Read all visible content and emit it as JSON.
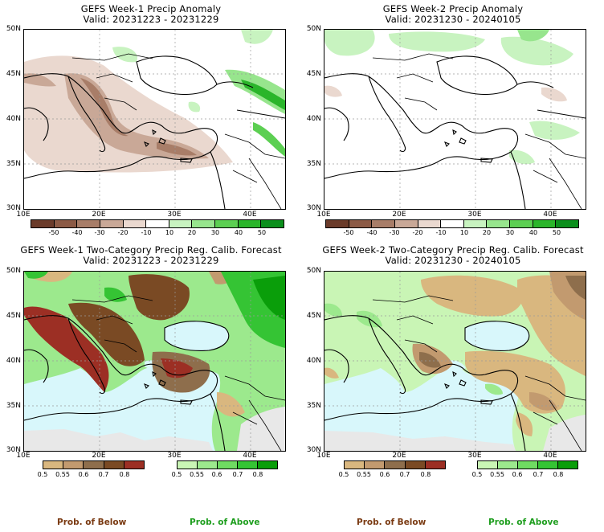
{
  "panels": [
    {
      "title": "GEFS Week-1 Precip Anomaly",
      "valid": "Valid: 20231223 - 20231229"
    },
    {
      "title": "GEFS Week-2 Precip Anomaly",
      "valid": "Valid: 20231230 - 20240105"
    },
    {
      "title": "GEFS Week-1 Two-Category Precip Reg. Calib. Forecast",
      "valid": "Valid: 20231223 - 20231229"
    },
    {
      "title": "GEFS Week-2 Two-Category Precip Reg. Calib. Forecast",
      "valid": "Valid: 20231230 - 20240105"
    }
  ],
  "lat_labels": [
    "50N",
    "45N",
    "40N",
    "35N",
    "30N"
  ],
  "lon_labels": [
    "10E",
    "20E",
    "30E",
    "40E"
  ],
  "anomaly_scale": [
    "-50",
    "-40",
    "-30",
    "-20",
    "-10",
    "10",
    "20",
    "30",
    "40",
    "50"
  ],
  "anomaly_colors": [
    "#6b3b2a",
    "#8c5a45",
    "#a87d68",
    "#c9a897",
    "#ead8cf",
    "#ffffff",
    "#c8f3c0",
    "#97e58d",
    "#5ccf52",
    "#2ab52a",
    "#0b8f1c"
  ],
  "prob_scale": [
    "0.5",
    "0.55",
    "0.6",
    "0.7",
    "0.8"
  ],
  "below_colors": [
    "#d9b77f",
    "#c29a6f",
    "#8e6e4c",
    "#7a4a24",
    "#9c2f24"
  ],
  "above_colors": [
    "#c9f5b5",
    "#9ce98d",
    "#6fdb62",
    "#35c434",
    "#0a9e0a"
  ],
  "legend": {
    "below": "Prob. of Below",
    "above": "Prob. of Above"
  },
  "colors": {
    "below_label": "#7a3a12",
    "above_label": "#1e9e1e",
    "sea": "#d8f7fb",
    "neutral_land": "#e8e8e8"
  }
}
